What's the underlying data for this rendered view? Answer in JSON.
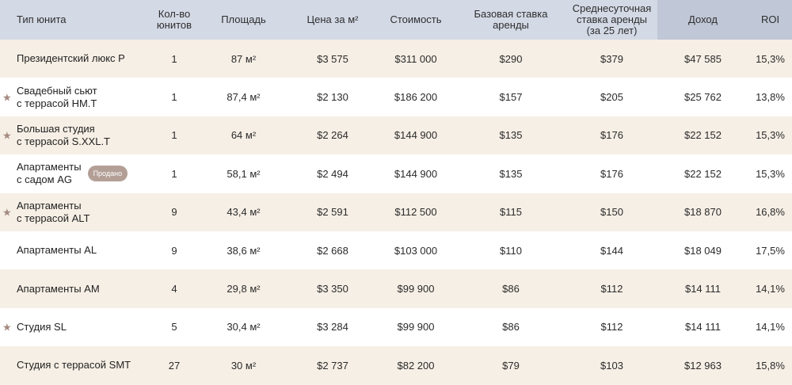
{
  "headers": [
    "Тип юнита",
    "Кол-во\nюнитов",
    "Площадь",
    "Цена за м²",
    "Стоимость",
    "Базовая ставка\nаренды",
    "Среднесуточная\nставка аренды\n(за 25 лет)",
    "Доход",
    "ROI"
  ],
  "accent_colors": {
    "header_bg": "#d3d9e5",
    "header_dark_bg": "#c0c7d6",
    "row_alt_bg": "#f6efe5",
    "badge_bg": "#b39f96",
    "star_color": "#a48a80"
  },
  "star_glyph": "★",
  "rows": [
    {
      "name": "Президентский люкс P",
      "star": false,
      "badge": "",
      "units": "1",
      "area": "87 м²",
      "price_m2": "$3 575",
      "cost": "$311 000",
      "base_rate": "$290",
      "avg_rate": "$379",
      "income": "$47 585",
      "roi": "15,3%"
    },
    {
      "name": "Свадебный сьют\nс террасой HM.T",
      "star": true,
      "badge": "",
      "units": "1",
      "area": "87,4 м²",
      "price_m2": "$2 130",
      "cost": "$186 200",
      "base_rate": "$157",
      "avg_rate": "$205",
      "income": "$25 762",
      "roi": "13,8%"
    },
    {
      "name": "Большая студия\nс террасой S.XXL.T",
      "star": true,
      "badge": "",
      "units": "1",
      "area": "64 м²",
      "price_m2": "$2 264",
      "cost": "$144 900",
      "base_rate": "$135",
      "avg_rate": "$176",
      "income": "$22 152",
      "roi": "15,3%"
    },
    {
      "name": "Апартаменты\nс садом AG",
      "star": false,
      "badge": "Продано",
      "units": "1",
      "area": "58,1 м²",
      "price_m2": "$2 494",
      "cost": "$144 900",
      "base_rate": "$135",
      "avg_rate": "$176",
      "income": "$22 152",
      "roi": "15,3%"
    },
    {
      "name": "Апартаменты\nс террасой ALT",
      "star": true,
      "badge": "",
      "units": "9",
      "area": "43,4 м²",
      "price_m2": "$2 591",
      "cost": "$112 500",
      "base_rate": "$115",
      "avg_rate": "$150",
      "income": "$18 870",
      "roi": "16,8%"
    },
    {
      "name": "Апартаменты AL",
      "star": false,
      "badge": "",
      "units": "9",
      "area": "38,6 м²",
      "price_m2": "$2 668",
      "cost": "$103 000",
      "base_rate": "$110",
      "avg_rate": "$144",
      "income": "$18 049",
      "roi": "17,5%"
    },
    {
      "name": "Апартаменты AM",
      "star": false,
      "badge": "",
      "units": "4",
      "area": "29,8 м²",
      "price_m2": "$3 350",
      "cost": "$99 900",
      "base_rate": "$86",
      "avg_rate": "$112",
      "income": "$14 111",
      "roi": "14,1%"
    },
    {
      "name": "Студия SL",
      "star": true,
      "badge": "",
      "units": "5",
      "area": "30,4 м²",
      "price_m2": "$3 284",
      "cost": "$99 900",
      "base_rate": "$86",
      "avg_rate": "$112",
      "income": "$14 111",
      "roi": "14,1%"
    },
    {
      "name": "Студия с террасой SMT",
      "star": false,
      "badge": "",
      "units": "27",
      "area": "30 м²",
      "price_m2": "$2 737",
      "cost": "$82 200",
      "base_rate": "$79",
      "avg_rate": "$103",
      "income": "$12 963",
      "roi": "15,8%"
    }
  ]
}
